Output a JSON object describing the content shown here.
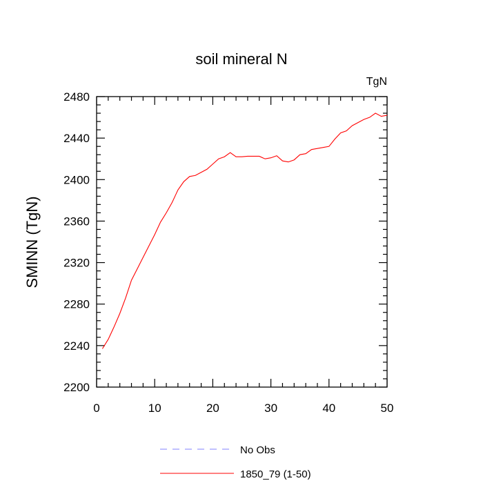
{
  "chart_data": {
    "type": "line",
    "title": "soil mineral N",
    "units_label": "TgN",
    "ylabel": "SMINN  (TgN)",
    "xlabel": "",
    "xlim": [
      0,
      50
    ],
    "ylim": [
      2200,
      2480
    ],
    "x_ticks": [
      0,
      10,
      20,
      30,
      40,
      50
    ],
    "y_ticks": [
      2200,
      2240,
      2280,
      2320,
      2360,
      2400,
      2440,
      2480
    ],
    "grid": false,
    "legend_position": "bottom",
    "series": [
      {
        "name": "No Obs",
        "color": "#8080ff",
        "style": "dashed",
        "x": [],
        "y": []
      },
      {
        "name": "1850_79 (1-50)",
        "color": "#ff0000",
        "style": "solid",
        "x": [
          1,
          2,
          3,
          4,
          5,
          6,
          7,
          8,
          9,
          10,
          11,
          12,
          13,
          14,
          15,
          16,
          17,
          18,
          19,
          20,
          21,
          22,
          23,
          24,
          25,
          26,
          27,
          28,
          29,
          30,
          31,
          32,
          33,
          34,
          35,
          36,
          37,
          38,
          39,
          40,
          41,
          42,
          43,
          44,
          45,
          46,
          47,
          48,
          49,
          50
        ],
        "y": [
          2237,
          2246,
          2258,
          2271,
          2286,
          2303,
          2314,
          2325,
          2336,
          2347,
          2359,
          2368,
          2378,
          2390,
          2398,
          2403,
          2404,
          2407,
          2410,
          2415,
          2420,
          2422,
          2426,
          2422,
          2422,
          2422.5,
          2422.5,
          2422.5,
          2420,
          2421,
          2423,
          2418,
          2417,
          2419,
          2424,
          2425,
          2429,
          2430,
          2431,
          2432,
          2439,
          2445,
          2447,
          2452,
          2455,
          2458,
          2460,
          2464,
          2461,
          2462
        ]
      }
    ]
  }
}
